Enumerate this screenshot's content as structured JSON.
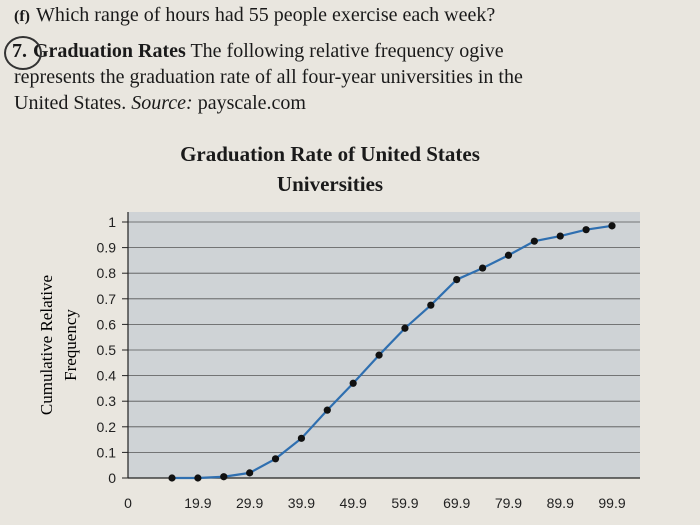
{
  "text": {
    "part_label": "(f)",
    "question_f": "Which range of hours had 55 people exercise each week?",
    "problem_number": "7.",
    "problem_title": "Graduation Rates",
    "line1_rest": "The following relative frequency ogive",
    "line2": "represents the graduation rate of all four-year universities in the",
    "line3_start": "United States.",
    "source_label": "Source:",
    "source_value": "payscale.com"
  },
  "chart_data": {
    "type": "line",
    "title": "Graduation Rate of United States Universities",
    "title_line1": "Graduation Rate of United States",
    "title_line2": "Universities",
    "ylabel_line1": "Cumulative Relative",
    "ylabel_line2": "Frequency",
    "xlabel": "",
    "ylim": [
      0,
      1
    ],
    "y_ticks": [
      "0",
      "0.1",
      "0.2",
      "0.3",
      "0.4",
      "0.5",
      "0.6",
      "0.7",
      "0.8",
      "0.9",
      "1"
    ],
    "x_tick_labels": [
      "0",
      "19.9",
      "29.9",
      "39.9",
      "49.9",
      "59.9",
      "69.9",
      "79.9",
      "89.9",
      "99.9"
    ],
    "x": [
      14.9,
      19.9,
      24.9,
      29.9,
      34.9,
      39.9,
      44.9,
      49.9,
      54.9,
      59.9,
      64.9,
      69.9,
      74.9,
      79.9,
      84.9,
      89.9,
      94.9,
      99.9
    ],
    "values": [
      0.0,
      0.0,
      0.005,
      0.02,
      0.075,
      0.155,
      0.265,
      0.37,
      0.48,
      0.585,
      0.675,
      0.775,
      0.82,
      0.87,
      0.925,
      0.945,
      0.97,
      0.985
    ],
    "grid": true,
    "colors": {
      "plot_bg": "#cfd3d6",
      "line": "#2f6fb0",
      "marker": "#111111",
      "grid": "#555555"
    }
  }
}
